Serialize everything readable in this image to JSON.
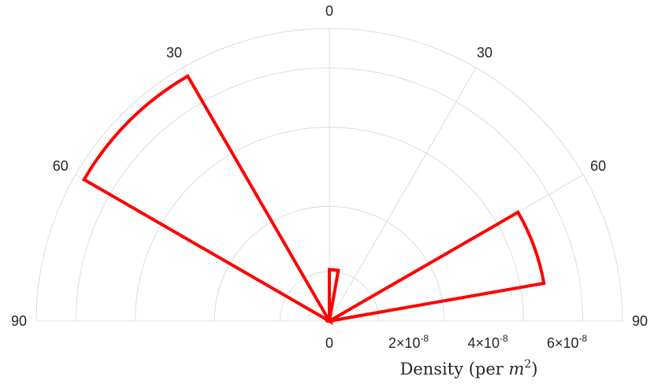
{
  "chart_data": {
    "type": "polar-histogram",
    "title": "",
    "theta_ticks": [
      "90",
      "60",
      "30",
      "0",
      "30",
      "60",
      "90"
    ],
    "theta_range_deg": [
      -90,
      90
    ],
    "r_ticks": [
      {
        "base": "0",
        "mult": "",
        "exp": ""
      },
      {
        "base": "2",
        "mult": "×10",
        "exp": "-8"
      },
      {
        "base": "4",
        "mult": "×10",
        "exp": "-8"
      },
      {
        "base": "6",
        "mult": "×10",
        "exp": "-8"
      }
    ],
    "r_tick_values": [
      0,
      2e-08,
      4e-08,
      6e-08
    ],
    "r_max": 7.4e-08,
    "r_label": "Density (per m²)",
    "r_label_text": "Density (per ",
    "r_label_var": "m",
    "r_label_exp": "2",
    "r_label_close": ")",
    "grid": true,
    "series_color": "#ff0000",
    "bins": [
      {
        "start": -90,
        "end": -85,
        "value": 4e-10
      },
      {
        "start": -85,
        "end": -75,
        "value": 3e-10
      },
      {
        "start": -75,
        "end": -60,
        "value": 6e-10
      },
      {
        "start": -60,
        "end": -30,
        "value": 7.15e-08
      },
      {
        "start": -30,
        "end": -15,
        "value": 4e-10
      },
      {
        "start": -15,
        "end": 0,
        "value": 5e-10
      },
      {
        "start": 0,
        "end": 10,
        "value": 1.3e-08
      },
      {
        "start": 10,
        "end": 15,
        "value": 4e-10
      },
      {
        "start": 15,
        "end": 30,
        "value": 3e-10
      },
      {
        "start": 30,
        "end": 45,
        "value": 3e-10
      },
      {
        "start": 45,
        "end": 60,
        "value": 4e-10
      },
      {
        "start": 60,
        "end": 80,
        "value": 5.5e-08
      },
      {
        "start": 80,
        "end": 87,
        "value": 7e-10
      },
      {
        "start": 87,
        "end": 90,
        "value": 5e-10
      }
    ]
  }
}
